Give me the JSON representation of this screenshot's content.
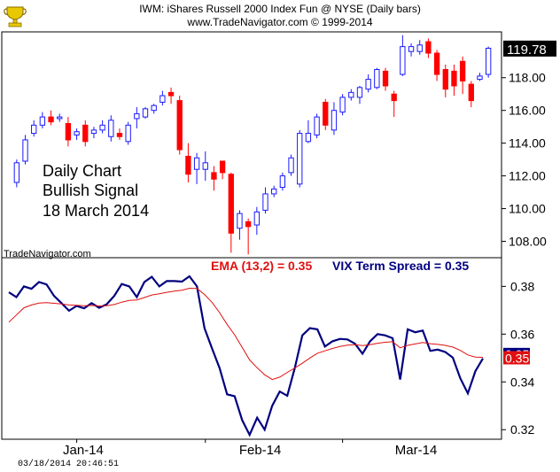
{
  "header": {
    "title": "IWM:  iShares Russell 2000 Index Fun @ NYSE  (Daily bars)",
    "subtitle": "www.TradeNavigator.com © 1999-2014"
  },
  "annotation": {
    "line1": "Daily Chart",
    "line2": "Bullish Signal",
    "line3": "18 March 2014"
  },
  "credit": "TradeNavigator.com",
  "timestamp": "03/18/2014 20:46:51",
  "colors": {
    "up": "#1a1aff",
    "down": "#ff0000",
    "vix_line": "#000080",
    "ema_line": "#e01010"
  },
  "chart_data": [
    {
      "type": "candlestick",
      "title": "IWM:  iShares Russell 2000 Index Fun @ NYSE  (Daily bars)",
      "ylim": [
        107,
        120.8
      ],
      "yticks": [
        108,
        110,
        112,
        114,
        116,
        118
      ],
      "last_price_label": "119.78",
      "x_tick_labels": [
        {
          "label": "Jan-14",
          "index": 7
        },
        {
          "label": "Feb-14",
          "index": 22
        },
        {
          "label": "Mar-14",
          "index": 38
        }
      ],
      "bars": [
        {
          "o": 111.6,
          "h": 113.0,
          "l": 111.3,
          "c": 112.8
        },
        {
          "o": 112.9,
          "h": 114.5,
          "l": 112.7,
          "c": 114.2
        },
        {
          "o": 114.6,
          "h": 115.4,
          "l": 114.4,
          "c": 115.1
        },
        {
          "o": 115.1,
          "h": 115.9,
          "l": 114.9,
          "c": 115.6
        },
        {
          "o": 115.6,
          "h": 116.0,
          "l": 115.1,
          "c": 115.3
        },
        {
          "o": 115.5,
          "h": 115.8,
          "l": 115.3,
          "c": 115.6
        },
        {
          "o": 115.2,
          "h": 115.6,
          "l": 113.8,
          "c": 114.2
        },
        {
          "o": 114.5,
          "h": 114.9,
          "l": 114.2,
          "c": 114.7
        },
        {
          "o": 115.1,
          "h": 115.4,
          "l": 113.8,
          "c": 114.1
        },
        {
          "o": 114.6,
          "h": 115.0,
          "l": 114.3,
          "c": 114.8
        },
        {
          "o": 114.8,
          "h": 115.4,
          "l": 114.6,
          "c": 115.1
        },
        {
          "o": 114.4,
          "h": 115.7,
          "l": 114.1,
          "c": 115.4
        },
        {
          "o": 114.6,
          "h": 114.9,
          "l": 114.2,
          "c": 114.4
        },
        {
          "o": 114.1,
          "h": 115.3,
          "l": 113.9,
          "c": 115.1
        },
        {
          "o": 115.5,
          "h": 116.2,
          "l": 114.9,
          "c": 115.8
        },
        {
          "o": 115.6,
          "h": 116.2,
          "l": 115.5,
          "c": 116.1
        },
        {
          "o": 116.0,
          "h": 116.4,
          "l": 115.8,
          "c": 116.3
        },
        {
          "o": 116.5,
          "h": 117.2,
          "l": 116.3,
          "c": 116.9
        },
        {
          "o": 117.1,
          "h": 117.4,
          "l": 116.4,
          "c": 116.9
        },
        {
          "o": 116.6,
          "h": 116.9,
          "l": 113.3,
          "c": 113.6
        },
        {
          "o": 113.2,
          "h": 114.0,
          "l": 111.6,
          "c": 112.1
        },
        {
          "o": 112.4,
          "h": 113.4,
          "l": 111.5,
          "c": 113.1
        },
        {
          "o": 112.4,
          "h": 113.5,
          "l": 111.7,
          "c": 112.8
        },
        {
          "o": 112.2,
          "h": 112.6,
          "l": 111.1,
          "c": 111.8
        },
        {
          "o": 112.9,
          "h": 112.9,
          "l": 111.8,
          "c": 112.2
        },
        {
          "o": 112.1,
          "h": 112.2,
          "l": 107.3,
          "c": 108.5
        },
        {
          "o": 108.8,
          "h": 109.9,
          "l": 108.1,
          "c": 109.7
        },
        {
          "o": 109.2,
          "h": 109.4,
          "l": 107.2,
          "c": 108.9
        },
        {
          "o": 109.0,
          "h": 110.1,
          "l": 108.4,
          "c": 109.8
        },
        {
          "o": 109.9,
          "h": 111.3,
          "l": 109.7,
          "c": 110.9
        },
        {
          "o": 110.9,
          "h": 111.4,
          "l": 110.7,
          "c": 111.2
        },
        {
          "o": 111.3,
          "h": 112.2,
          "l": 111.1,
          "c": 112.0
        },
        {
          "o": 112.2,
          "h": 113.3,
          "l": 112.0,
          "c": 113.1
        },
        {
          "o": 111.5,
          "h": 114.8,
          "l": 111.3,
          "c": 114.6
        },
        {
          "o": 114.1,
          "h": 115.4,
          "l": 114.0,
          "c": 114.6
        },
        {
          "o": 114.5,
          "h": 115.8,
          "l": 114.3,
          "c": 115.6
        },
        {
          "o": 116.5,
          "h": 116.7,
          "l": 114.8,
          "c": 115.1
        },
        {
          "o": 114.8,
          "h": 116.5,
          "l": 114.5,
          "c": 116.0
        },
        {
          "o": 115.9,
          "h": 117.0,
          "l": 115.7,
          "c": 116.8
        },
        {
          "o": 116.8,
          "h": 117.3,
          "l": 116.6,
          "c": 117.1
        },
        {
          "o": 116.8,
          "h": 117.5,
          "l": 116.4,
          "c": 117.4
        },
        {
          "o": 117.3,
          "h": 118.2,
          "l": 117.1,
          "c": 117.9
        },
        {
          "o": 117.4,
          "h": 118.6,
          "l": 117.3,
          "c": 118.5
        },
        {
          "o": 118.4,
          "h": 118.6,
          "l": 117.2,
          "c": 117.5
        },
        {
          "o": 117.0,
          "h": 117.2,
          "l": 115.6,
          "c": 116.6
        },
        {
          "o": 118.2,
          "h": 120.6,
          "l": 118.1,
          "c": 119.9
        },
        {
          "o": 119.6,
          "h": 120.1,
          "l": 119.3,
          "c": 119.9
        },
        {
          "o": 119.6,
          "h": 120.3,
          "l": 119.4,
          "c": 120.0
        },
        {
          "o": 120.2,
          "h": 120.4,
          "l": 119.2,
          "c": 119.5
        },
        {
          "o": 119.5,
          "h": 119.7,
          "l": 117.8,
          "c": 118.2
        },
        {
          "o": 118.5,
          "h": 118.8,
          "l": 116.8,
          "c": 117.3
        },
        {
          "o": 118.4,
          "h": 118.8,
          "l": 116.9,
          "c": 117.5
        },
        {
          "o": 119.0,
          "h": 119.3,
          "l": 117.0,
          "c": 117.8
        },
        {
          "o": 117.6,
          "h": 117.8,
          "l": 116.2,
          "c": 116.6
        },
        {
          "o": 117.9,
          "h": 118.3,
          "l": 117.8,
          "c": 118.1
        },
        {
          "o": 118.2,
          "h": 119.9,
          "l": 118.0,
          "c": 119.8
        }
      ]
    },
    {
      "type": "line",
      "ylim": [
        0.316,
        0.392
      ],
      "yticks": [
        0.32,
        0.34,
        0.36,
        0.38
      ],
      "series": [
        {
          "name": "VIX Term Spread",
          "display": "VIX Term Spread = 0.35",
          "label_value": "0.35",
          "color": "#000080",
          "values": [
            0.3775,
            0.3755,
            0.38,
            0.379,
            0.3818,
            0.3808,
            0.376,
            0.373,
            0.3698,
            0.3718,
            0.3708,
            0.373,
            0.371,
            0.3725,
            0.376,
            0.381,
            0.38,
            0.3755,
            0.3818,
            0.384,
            0.38,
            0.3822,
            0.3822,
            0.382,
            0.3842,
            0.38,
            0.3625,
            0.354,
            0.3458,
            0.3348,
            0.334,
            0.324,
            0.3178,
            0.325,
            0.32,
            0.33,
            0.336,
            0.3342,
            0.3458,
            0.3595,
            0.3625,
            0.362,
            0.3548,
            0.357,
            0.358,
            0.3578,
            0.356,
            0.3518,
            0.357,
            0.36,
            0.3595,
            0.3583,
            0.341,
            0.362,
            0.3608,
            0.3615,
            0.353,
            0.3535,
            0.3525,
            0.3502,
            0.3415,
            0.3352,
            0.3445,
            0.3498
          ]
        },
        {
          "name": "EMA (13,2)",
          "display": "EMA (13,2) = 0.35",
          "label_value": "0.35",
          "color": "#e01010",
          "values": [
            0.365,
            0.368,
            0.371,
            0.3722,
            0.373,
            0.3732,
            0.3729,
            0.3726,
            0.3722,
            0.3721,
            0.3719,
            0.372,
            0.3718,
            0.3719,
            0.3724,
            0.3734,
            0.3741,
            0.3743,
            0.3753,
            0.3764,
            0.3769,
            0.3775,
            0.378,
            0.3784,
            0.3792,
            0.3791,
            0.3766,
            0.3733,
            0.369,
            0.3641,
            0.3597,
            0.3545,
            0.3492,
            0.3459,
            0.343,
            0.341,
            0.342,
            0.344,
            0.3458,
            0.3478,
            0.35,
            0.352,
            0.353,
            0.354,
            0.3548,
            0.3554,
            0.3556,
            0.3552,
            0.3556,
            0.3562,
            0.3566,
            0.3568,
            0.3543,
            0.3553,
            0.3559,
            0.3565,
            0.356,
            0.3557,
            0.3553,
            0.3546,
            0.3532,
            0.3513,
            0.3504,
            0.3503
          ]
        }
      ],
      "x_tick_labels": [
        {
          "label": "Jan-14",
          "position": 0.163
        },
        {
          "label": "Feb-14",
          "position": 0.517
        },
        {
          "label": "Mar-14",
          "position": 0.829
        }
      ]
    }
  ]
}
